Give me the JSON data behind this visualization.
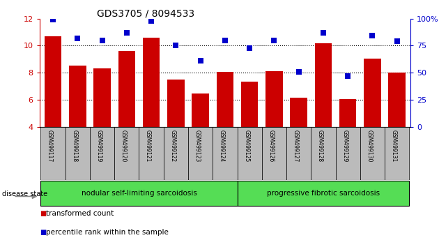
{
  "title": "GDS3705 / 8094533",
  "samples": [
    "GSM499117",
    "GSM499118",
    "GSM499119",
    "GSM499120",
    "GSM499121",
    "GSM499122",
    "GSM499123",
    "GSM499124",
    "GSM499125",
    "GSM499126",
    "GSM499127",
    "GSM499128",
    "GSM499129",
    "GSM499130",
    "GSM499131"
  ],
  "bar_values": [
    10.7,
    8.55,
    8.35,
    9.6,
    10.6,
    7.5,
    6.5,
    8.05,
    7.35,
    8.1,
    6.15,
    10.2,
    6.05,
    9.05,
    8.0
  ],
  "dot_values": [
    99,
    82,
    80,
    87,
    98,
    75,
    61,
    80,
    73,
    80,
    51,
    87,
    47,
    84,
    79
  ],
  "bar_color": "#cc0000",
  "dot_color": "#0000cc",
  "ylim_left": [
    4,
    12
  ],
  "ylim_right": [
    0,
    100
  ],
  "yticks_left": [
    4,
    6,
    8,
    10,
    12
  ],
  "yticks_right": [
    0,
    25,
    50,
    75,
    100
  ],
  "ytick_labels_right": [
    "0",
    "25",
    "50",
    "75",
    "100%"
  ],
  "group1_label": "nodular self-limiting sarcoidosis",
  "group2_label": "progressive fibrotic sarcoidosis",
  "group1_count": 8,
  "group2_count": 7,
  "disease_state_label": "disease state",
  "legend_bar_label": "transformed count",
  "legend_dot_label": "percentile rank within the sample",
  "group_bg_color": "#55dd55",
  "tick_area_color": "#bbbbbb",
  "bar_width": 0.7,
  "dot_size": 28,
  "grid_linestyle": ":",
  "grid_linewidth": 0.8
}
